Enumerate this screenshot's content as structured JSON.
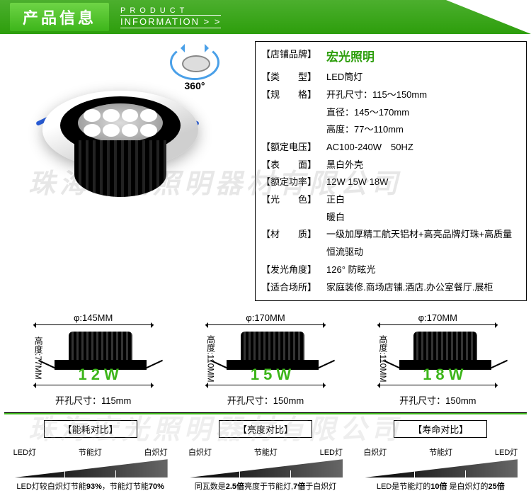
{
  "header": {
    "cn": "产品信息",
    "en_top": "PRODUCT",
    "en_bot": "INFORMATION  > >"
  },
  "rotate": "360°",
  "watermark": "珠海宏光照明器材有限公司",
  "specs": {
    "brand_k": "店铺品牌",
    "brand_v": "宏光照明",
    "type_k": "类　　型",
    "type_v": "LED筒灯",
    "spec_k": "规　　格",
    "spec_v1": "开孔尺寸：115～150mm",
    "spec_v2": "直径：145～170mm",
    "spec_v3": "高度：77～110mm",
    "volt_k": "额定电压",
    "volt_v": "AC100-240W　50HZ",
    "surf_k": "表　　面",
    "surf_v": "黑白外壳",
    "pwr_k": "额定功率",
    "pwr_v": "12W  15W  18W",
    "color_k": "光　　色",
    "color_v1": "正白",
    "color_v2": "暖白",
    "mat_k": "材　　质",
    "mat_v": "一级加厚精工航天铝材+高亮品牌灯珠+高质量恒流驱动",
    "angle_k": "发光角度",
    "angle_v": "126° 防眩光",
    "place_k": "适合场所",
    "place_v": "家庭装修.商场店铺.酒店.办公室餐厅.展柜"
  },
  "dims": [
    {
      "phi": "φ:145MM",
      "h": "高度:77MM",
      "w": "12W",
      "hole": "开孔尺寸：115mm"
    },
    {
      "phi": "φ:170MM",
      "h": "高度:110MM",
      "w": "15W",
      "hole": "开孔尺寸：150mm"
    },
    {
      "phi": "φ:170MM",
      "h": "高度:110MM",
      "w": "18W",
      "hole": "开孔尺寸：150mm"
    }
  ],
  "comps": [
    {
      "title": "【能耗对比】",
      "l1": "LED灯",
      "l2": "节能灯",
      "l3": "白炽灯",
      "desc": "LED灯较白炽灯节能<b>93%</b>，节能灯节能<b>70%</b>"
    },
    {
      "title": "【亮度对比】",
      "l1": "白炽灯",
      "l2": "节能灯",
      "l3": "LED灯",
      "desc": "同瓦数是<b>2.5倍</b>亮度于节能灯,<b>7倍</b>于白炽灯"
    },
    {
      "title": "【寿命对比】",
      "l1": "白炽灯",
      "l2": "节能灯",
      "l3": "LED灯",
      "desc": "LED是节能灯的<b>10倍</b> 是白炽灯的<b>25倍</b>"
    }
  ]
}
